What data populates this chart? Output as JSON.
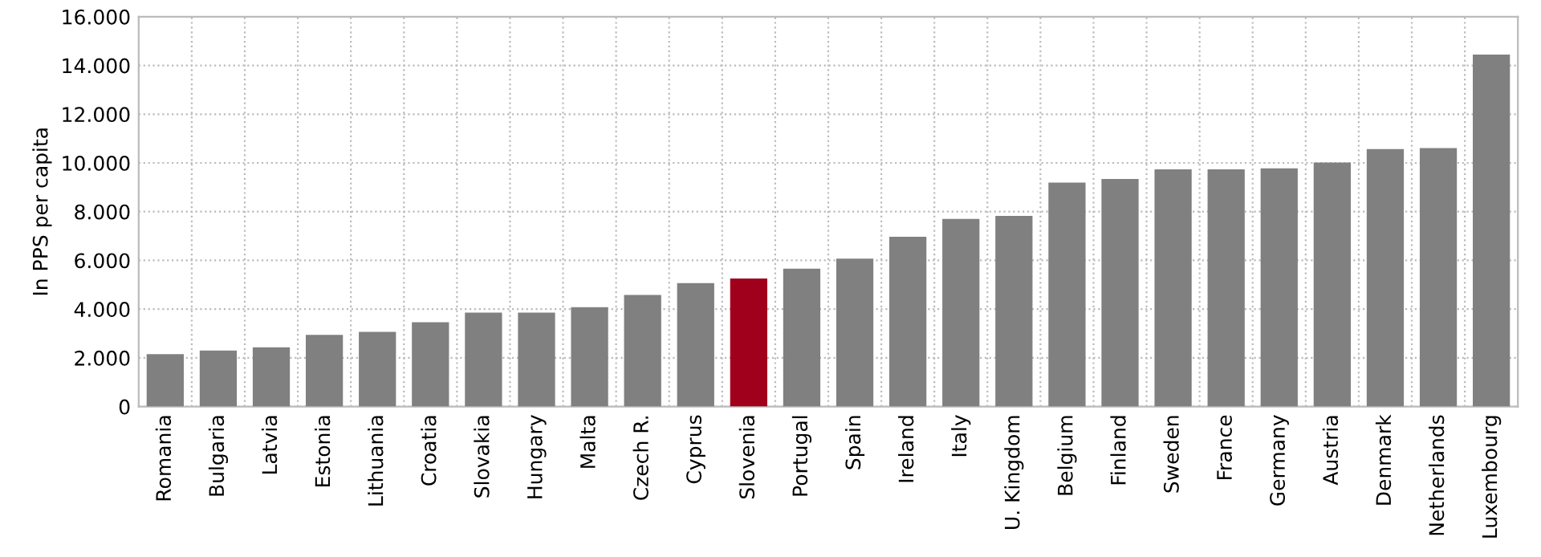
{
  "chart_data": {
    "type": "bar",
    "ylabel": "In PPS per capita",
    "categories": [
      "Romania",
      "Bulgaria",
      "Latvia",
      "Estonia",
      "Lithuania",
      "Croatia",
      "Slovakia",
      "Hungary",
      "Malta",
      "Czech R.",
      "Cyprus",
      "Slovenia",
      "Portugal",
      "Spain",
      "Ireland",
      "Italy",
      "U. Kingdom",
      "Belgium",
      "Finland",
      "Sweden",
      "France",
      "Germany",
      "Austria",
      "Denmark",
      "Netherlands",
      "Luxembourg"
    ],
    "values": [
      2150,
      2300,
      2430,
      2940,
      3070,
      3460,
      3860,
      3860,
      4080,
      4580,
      5070,
      5260,
      5660,
      6070,
      6970,
      7700,
      7830,
      9190,
      9340,
      9740,
      9740,
      9780,
      10020,
      10570,
      10610,
      14450
    ],
    "colors": [
      "#808080",
      "#808080",
      "#808080",
      "#808080",
      "#808080",
      "#808080",
      "#808080",
      "#808080",
      "#808080",
      "#808080",
      "#808080",
      "#a0001c",
      "#808080",
      "#808080",
      "#808080",
      "#808080",
      "#808080",
      "#808080",
      "#808080",
      "#808080",
      "#808080",
      "#808080",
      "#808080",
      "#808080",
      "#808080",
      "#808080"
    ],
    "ylim": [
      0,
      16000
    ],
    "yticks": [
      0,
      {
        "value": 2000,
        "label": "2.000"
      },
      {
        "value": 4000,
        "label": "4.000"
      },
      {
        "value": 6000,
        "label": "6.000"
      },
      {
        "value": 8000,
        "label": "8.000"
      },
      {
        "value": 10000,
        "label": "10.000"
      },
      {
        "value": 12000,
        "label": "12.000"
      },
      {
        "value": 14000,
        "label": "14.000"
      },
      {
        "value": 16000,
        "label": "16.000"
      }
    ],
    "grid": true
  }
}
